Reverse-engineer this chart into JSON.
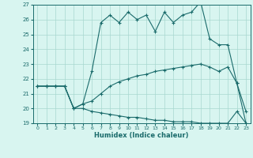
{
  "title": "",
  "xlabel": "Humidex (Indice chaleur)",
  "x_hours": [
    0,
    1,
    2,
    3,
    4,
    5,
    6,
    7,
    8,
    9,
    10,
    11,
    12,
    13,
    14,
    15,
    16,
    17,
    18,
    19,
    20,
    21,
    22,
    23
  ],
  "line1": [
    21.5,
    21.5,
    21.5,
    21.5,
    20.0,
    20.3,
    22.5,
    25.8,
    26.3,
    25.8,
    26.5,
    26.0,
    26.3,
    25.2,
    26.5,
    25.8,
    26.3,
    26.5,
    27.2,
    24.7,
    24.3,
    24.3,
    21.7,
    19.8
  ],
  "line2": [
    21.5,
    21.5,
    21.5,
    21.5,
    20.0,
    20.3,
    20.5,
    21.0,
    21.5,
    21.8,
    22.0,
    22.2,
    22.3,
    22.5,
    22.6,
    22.7,
    22.8,
    22.9,
    23.0,
    22.8,
    22.5,
    22.8,
    21.7,
    19.0
  ],
  "line3": [
    21.5,
    21.5,
    21.5,
    21.5,
    20.0,
    20.0,
    19.8,
    19.7,
    19.6,
    19.5,
    19.4,
    19.4,
    19.3,
    19.2,
    19.2,
    19.1,
    19.1,
    19.1,
    19.0,
    19.0,
    19.0,
    19.0,
    19.8,
    19.0
  ],
  "ylim": [
    19,
    27
  ],
  "xlim": [
    0,
    23
  ],
  "yticks": [
    19,
    20,
    21,
    22,
    23,
    24,
    25,
    26,
    27
  ],
  "xticks": [
    0,
    1,
    2,
    3,
    4,
    5,
    6,
    7,
    8,
    9,
    10,
    11,
    12,
    13,
    14,
    15,
    16,
    17,
    18,
    19,
    20,
    21,
    22,
    23
  ],
  "line_color": "#1a6b6b",
  "bg_color": "#d8f5f0",
  "grid_color": "#a8d8d0",
  "figsize": [
    3.2,
    2.0
  ],
  "dpi": 100
}
